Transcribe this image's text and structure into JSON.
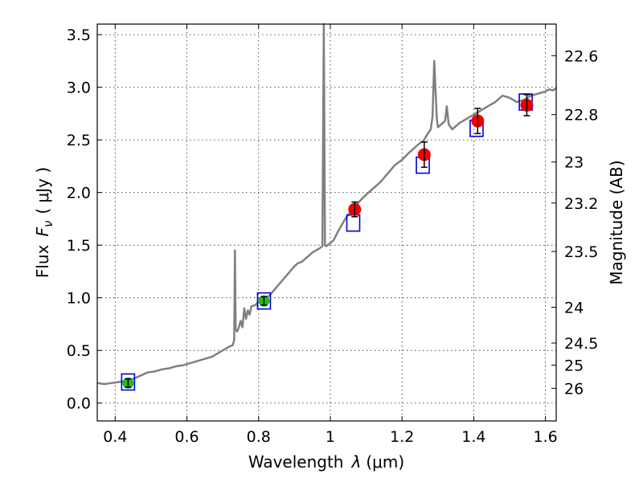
{
  "chart_data": {
    "type": "line",
    "xlabel": "Wavelength",
    "xlabel_symbol": "λ",
    "xlabel_unit": "(μm)",
    "ylabel": "Flux",
    "ylabel_symbol": "F",
    "ylabel_subscript": "ν",
    "ylabel_unit": "( μJy )",
    "y2label": "Magnitude (AB)",
    "xlim": [
      0.35,
      1.63
    ],
    "ylim": [
      -0.17,
      3.6
    ],
    "grid": true,
    "x_ticks": [
      0.4,
      0.6,
      0.8,
      1.0,
      1.2,
      1.4,
      1.6
    ],
    "x_tick_labels": [
      "0.4",
      "0.6",
      "0.8",
      "1",
      "1.2",
      "1.4",
      "1.6"
    ],
    "y_ticks": [
      0.0,
      0.5,
      1.0,
      1.5,
      2.0,
      2.5,
      3.0,
      3.5
    ],
    "y_tick_labels": [
      "0.0",
      "0.5",
      "1.0",
      "1.5",
      "2.0",
      "2.5",
      "3.0",
      "3.5"
    ],
    "y2_ticks": [
      {
        "label": "22.6",
        "flux": 3.3
      },
      {
        "label": "22.8",
        "flux": 2.74
      },
      {
        "label": "23",
        "flux": 2.29
      },
      {
        "label": "23.2",
        "flux": 1.9
      },
      {
        "label": "23.5",
        "flux": 1.44
      },
      {
        "label": "24",
        "flux": 0.91
      },
      {
        "label": "24.5",
        "flux": 0.57
      },
      {
        "label": "25",
        "flux": 0.36
      },
      {
        "label": "26",
        "flux": 0.14
      }
    ],
    "colors": {
      "spectrum": "#808080",
      "model": "#0000dd",
      "green": "#22bb22",
      "red": "#ee0000",
      "error": "#000000"
    },
    "spectrum": {
      "x": [
        0.35,
        0.37,
        0.39,
        0.41,
        0.43,
        0.45,
        0.47,
        0.49,
        0.51,
        0.53,
        0.55,
        0.57,
        0.59,
        0.61,
        0.63,
        0.65,
        0.67,
        0.69,
        0.71,
        0.72,
        0.728,
        0.732,
        0.734,
        0.736,
        0.74,
        0.745,
        0.75,
        0.755,
        0.76,
        0.765,
        0.77,
        0.775,
        0.78,
        0.79,
        0.8,
        0.81,
        0.82,
        0.83,
        0.84,
        0.85,
        0.86,
        0.87,
        0.88,
        0.89,
        0.9,
        0.91,
        0.92,
        0.93,
        0.94,
        0.95,
        0.96,
        0.97,
        0.978,
        0.982,
        0.985,
        0.988,
        0.992,
        1.0,
        1.01,
        1.02,
        1.03,
        1.04,
        1.05,
        1.06,
        1.08,
        1.1,
        1.12,
        1.14,
        1.16,
        1.18,
        1.2,
        1.22,
        1.24,
        1.25,
        1.26,
        1.27,
        1.28,
        1.285,
        1.29,
        1.293,
        1.297,
        1.3,
        1.31,
        1.32,
        1.325,
        1.33,
        1.34,
        1.36,
        1.38,
        1.4,
        1.42,
        1.44,
        1.46,
        1.48,
        1.5,
        1.52,
        1.54,
        1.56,
        1.58,
        1.6,
        1.61,
        1.62,
        1.63
      ],
      "y": [
        0.19,
        0.18,
        0.19,
        0.2,
        0.21,
        0.23,
        0.26,
        0.29,
        0.3,
        0.32,
        0.33,
        0.35,
        0.36,
        0.38,
        0.4,
        0.42,
        0.44,
        0.48,
        0.52,
        0.54,
        0.55,
        0.6,
        1.45,
        0.7,
        0.68,
        0.72,
        0.78,
        0.72,
        0.9,
        0.8,
        0.88,
        0.84,
        0.92,
        0.93,
        0.96,
        0.98,
        1.0,
        1.02,
        1.06,
        1.1,
        1.14,
        1.18,
        1.22,
        1.26,
        1.3,
        1.33,
        1.34,
        1.37,
        1.4,
        1.43,
        1.45,
        1.47,
        1.49,
        3.6,
        1.5,
        1.49,
        1.5,
        1.52,
        1.55,
        1.62,
        1.68,
        1.74,
        1.79,
        1.83,
        1.91,
        1.98,
        2.04,
        2.1,
        2.18,
        2.26,
        2.31,
        2.38,
        2.44,
        2.47,
        2.49,
        2.55,
        2.6,
        2.72,
        3.25,
        3.0,
        2.7,
        2.62,
        2.65,
        2.68,
        2.82,
        2.65,
        2.6,
        2.66,
        2.7,
        2.74,
        2.78,
        2.82,
        2.86,
        2.92,
        2.9,
        2.86,
        2.88,
        2.92,
        2.94,
        2.96,
        2.98,
        2.97,
        2.99
      ]
    },
    "model_points": {
      "x": [
        0.436,
        0.815,
        1.064,
        1.258,
        1.408,
        1.545
      ],
      "y": [
        0.2,
        0.97,
        1.71,
        2.26,
        2.61,
        2.86
      ]
    },
    "observed_points": [
      {
        "x": 0.436,
        "y": 0.19,
        "err": 0.04,
        "color": "green"
      },
      {
        "x": 0.815,
        "y": 0.97,
        "err": 0.04,
        "color": "green"
      },
      {
        "x": 1.068,
        "y": 1.84,
        "err": 0.07,
        "color": "red"
      },
      {
        "x": 1.262,
        "y": 2.36,
        "err": 0.12,
        "color": "red"
      },
      {
        "x": 1.411,
        "y": 2.68,
        "err": 0.12,
        "color": "red"
      },
      {
        "x": 1.548,
        "y": 2.83,
        "err": 0.1,
        "color": "red"
      }
    ]
  }
}
